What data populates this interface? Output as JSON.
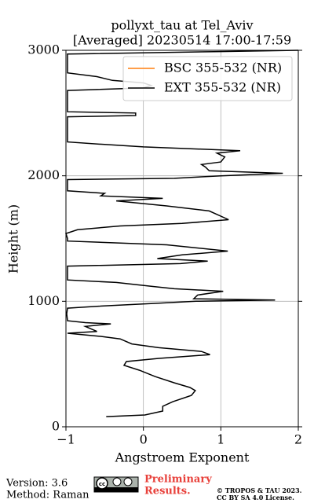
{
  "chart_data": {
    "type": "line",
    "title": "pollyxt_tau at Tel_Aviv",
    "subtitle": "[Averaged] 20230514 17:00-17:59",
    "x_label": "Angstroem Exponent",
    "y_label": "Height (m)",
    "xlim": [
      -1,
      2
    ],
    "xticks": [
      {
        "value": -1,
        "label": "−1"
      },
      0,
      1,
      2
    ],
    "ylim": [
      0,
      3000
    ],
    "yticks": [
      0,
      1000,
      2000,
      3000
    ],
    "grid": true,
    "legend": "upper right",
    "series": [
      {
        "name": "BSC 355-532 (NR)",
        "color": "#ff7f0e",
        "heights": [],
        "values": []
      },
      {
        "name": "EXT 355-532 (NR)",
        "color": "#000000",
        "heights": [
          81,
          94,
          125,
          163,
          200,
          250,
          288,
          313,
          350,
          400,
          450,
          490,
          520,
          545,
          575,
          600,
          630,
          660,
          700,
          720,
          745,
          760,
          800,
          820,
          830,
          845,
          900,
          945,
          960,
          985,
          1000,
          1010,
          1020,
          1050,
          1080,
          1100,
          1120,
          1150,
          1170,
          1200,
          1280,
          1300,
          1320,
          1340,
          1370,
          1400,
          1450,
          1480,
          1500,
          1540,
          1570,
          1600,
          1620,
          1650,
          1720,
          1760,
          1800,
          1820,
          1840,
          1860,
          1880,
          1900,
          1970,
          1980,
          2000,
          2020,
          2040,
          2070,
          2090,
          2110,
          2150,
          2180,
          2200,
          2230,
          2250,
          2270,
          2300,
          2470,
          2480,
          2500,
          2510,
          2600,
          2680,
          2700,
          2720,
          2740,
          2760,
          2790,
          2820,
          2900,
          2970,
          2990,
          3000
        ],
        "values": [
          -0.48,
          0.02,
          0.25,
          0.25,
          0.38,
          0.62,
          0.67,
          0.6,
          0.4,
          0.15,
          -0.05,
          -0.25,
          -0.22,
          0.2,
          0.86,
          0.75,
          0.2,
          -0.15,
          -0.3,
          -0.55,
          -0.98,
          -0.6,
          -0.75,
          -0.42,
          -0.75,
          -0.98,
          -0.99,
          -0.98,
          -0.6,
          0.2,
          0.68,
          1.7,
          0.65,
          0.7,
          1.03,
          0.4,
          0.1,
          -0.35,
          -0.98,
          -0.98,
          -0.98,
          0.48,
          0.83,
          0.18,
          0.5,
          1.09,
          0.3,
          -0.98,
          -0.98,
          -1.0,
          -0.85,
          -0.3,
          0.5,
          1.1,
          0.85,
          0.3,
          -0.35,
          0.25,
          -0.55,
          -0.5,
          -0.98,
          -0.98,
          -0.98,
          0.4,
          1.0,
          1.8,
          0.85,
          0.8,
          0.75,
          1.0,
          1.05,
          0.95,
          1.25,
          0.0,
          -0.5,
          -0.98,
          -0.98,
          -0.98,
          -0.1,
          -0.1,
          -0.98,
          -0.98,
          -0.98,
          0.0,
          0.1,
          0.0,
          -0.4,
          -0.6,
          -0.98,
          -0.98,
          -0.98,
          1.0,
          2.0
        ]
      }
    ]
  },
  "footer": {
    "version": "Version: 3.6",
    "method": "Method: Raman",
    "status": [
      "Preliminary",
      "Results."
    ],
    "license": [
      "© TROPOS & TAU 2023.",
      "CC BY SA 4.0 License."
    ]
  }
}
